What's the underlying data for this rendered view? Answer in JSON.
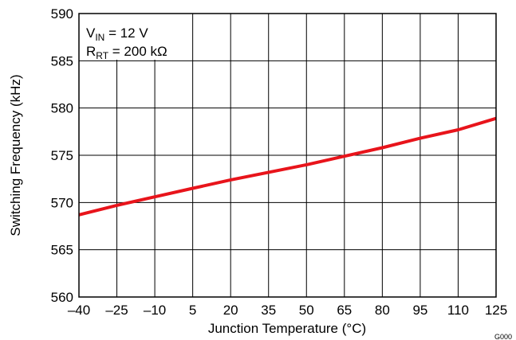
{
  "chart_data": {
    "type": "line",
    "xlabel": "Junction Temperature (°C)",
    "ylabel": "Switching Frequency (kHz)",
    "xlim": [
      -40,
      125
    ],
    "ylim": [
      560,
      590
    ],
    "x_ticks": [
      -40,
      -25,
      -10,
      5,
      20,
      35,
      50,
      65,
      80,
      95,
      110,
      125
    ],
    "x_tick_labels": [
      "–40",
      "–25",
      "–10",
      "5",
      "20",
      "35",
      "50",
      "65",
      "80",
      "95",
      "110",
      "125"
    ],
    "y_ticks": [
      560,
      565,
      570,
      575,
      580,
      585,
      590
    ],
    "y_tick_labels": [
      "560",
      "565",
      "570",
      "575",
      "580",
      "585",
      "590"
    ],
    "grid": true,
    "series": [
      {
        "color": "#e8141b",
        "x": [
          -40,
          -25,
          -10,
          5,
          20,
          35,
          50,
          65,
          80,
          95,
          110,
          125
        ],
        "y": [
          568.7,
          569.7,
          570.6,
          571.5,
          572.4,
          573.2,
          574.0,
          574.9,
          575.8,
          576.8,
          577.7,
          578.9
        ]
      }
    ],
    "annotations": {
      "line1_main": "V",
      "line1_sub": "IN",
      "line1_rest": " = 12 V",
      "line2_main": "R",
      "line2_sub": "RT",
      "line2_rest": " = 200 kΩ"
    },
    "figure_id": "G000"
  }
}
